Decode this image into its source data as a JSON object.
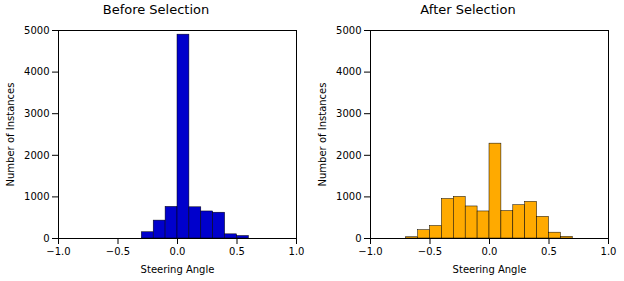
{
  "chart_data": [
    {
      "type": "histogram",
      "title": "Before Selection",
      "xlabel": "Steering Angle",
      "ylabel": "Number of Instances",
      "bins": [
        -1.0,
        -0.9,
        -0.8,
        -0.7,
        -0.6,
        -0.5,
        -0.4,
        -0.3,
        -0.2,
        -0.1,
        0.0,
        0.1,
        0.2,
        0.3,
        0.4,
        0.5,
        0.6,
        0.7,
        0.8,
        0.9,
        1.0
      ],
      "values": [
        0,
        0,
        0,
        0,
        0,
        0,
        0,
        150,
        430,
        760,
        4900,
        750,
        650,
        620,
        100,
        60,
        0,
        0,
        0,
        0
      ],
      "color": "#0000cc",
      "xlim": [
        -1.0,
        1.0
      ],
      "ylim": [
        0,
        5000
      ],
      "xticks": [
        {
          "value": -1.0,
          "label": "−1.0"
        },
        {
          "value": -0.5,
          "label": "−0.5"
        },
        {
          "value": 0.0,
          "label": "0.0"
        },
        0.5,
        {
          "value": 1.0,
          "label": "1.0"
        }
      ],
      "yticks": [
        0,
        1000,
        2000,
        3000,
        4000,
        5000
      ]
    },
    {
      "type": "histogram",
      "title": "After Selection",
      "xlabel": "Steering Angle",
      "ylabel": "Number of Instances",
      "bins": [
        -1.0,
        -0.9,
        -0.8,
        -0.7,
        -0.6,
        -0.5,
        -0.4,
        -0.3,
        -0.2,
        -0.1,
        0.0,
        0.1,
        0.2,
        0.3,
        0.4,
        0.5,
        0.6,
        0.7,
        0.8,
        0.9,
        1.0
      ],
      "values": [
        0,
        0,
        0,
        30,
        200,
        300,
        950,
        1000,
        770,
        650,
        2280,
        660,
        800,
        880,
        520,
        140,
        40,
        0,
        0,
        0
      ],
      "color": "#ffaa00",
      "xlim": [
        -1.0,
        1.0
      ],
      "ylim": [
        0,
        5000
      ],
      "xticks": [
        {
          "value": -1.0,
          "label": "−1.0"
        },
        {
          "value": -0.5,
          "label": "−0.5"
        },
        {
          "value": 0.0,
          "label": "0.0"
        },
        0.5,
        {
          "value": 1.0,
          "label": "1.0"
        }
      ],
      "yticks": [
        0,
        1000,
        2000,
        3000,
        4000,
        5000
      ]
    }
  ]
}
